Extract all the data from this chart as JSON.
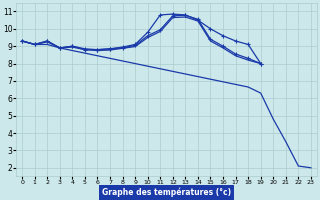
{
  "background_color": "#cce8ea",
  "grid_color": "#aacccc",
  "line_color": "#1a3aaa",
  "xlabel": "Graphe des températures (°c)",
  "xlabel_bg": "#1a3aaa",
  "xlabel_fg": "#ffffff",
  "xlim": [
    -0.5,
    23.5
  ],
  "ylim": [
    1.5,
    11.5
  ],
  "xticks": [
    0,
    1,
    2,
    3,
    4,
    5,
    6,
    7,
    8,
    9,
    10,
    11,
    12,
    13,
    14,
    15,
    16,
    17,
    18,
    19,
    20,
    21,
    22,
    23
  ],
  "yticks": [
    2,
    3,
    4,
    5,
    6,
    7,
    8,
    9,
    10,
    11
  ],
  "s1x": [
    0,
    1,
    2,
    3,
    4,
    5,
    6,
    7,
    8,
    9,
    10,
    11,
    12,
    13,
    14,
    15,
    16,
    17,
    18,
    19,
    20,
    21,
    22,
    23
  ],
  "s1y": [
    9.3,
    9.1,
    9.1,
    8.9,
    8.75,
    8.6,
    8.45,
    8.3,
    8.15,
    8.0,
    7.85,
    7.7,
    7.55,
    7.4,
    7.25,
    7.1,
    6.95,
    6.8,
    6.65,
    6.3,
    4.8,
    3.5,
    2.1,
    2.0
  ],
  "s2x": [
    0,
    1,
    2,
    3,
    4,
    5,
    6,
    7,
    8,
    9,
    10,
    11,
    12,
    13,
    14,
    15,
    16,
    17,
    18,
    19
  ],
  "s2y": [
    9.3,
    9.1,
    9.3,
    8.9,
    9.0,
    8.8,
    8.8,
    8.85,
    8.95,
    9.1,
    9.8,
    10.8,
    10.85,
    10.8,
    10.5,
    10.0,
    9.6,
    9.3,
    9.1,
    8.0
  ],
  "s3x": [
    0,
    1,
    2,
    3,
    4,
    5,
    6,
    7,
    8,
    9,
    10,
    11,
    12,
    13,
    14,
    15,
    16,
    17,
    18,
    19
  ],
  "s3y": [
    9.3,
    9.1,
    9.3,
    8.9,
    9.0,
    8.85,
    8.8,
    8.85,
    8.9,
    9.05,
    9.6,
    9.95,
    10.75,
    10.78,
    10.55,
    9.4,
    9.0,
    8.55,
    8.3,
    8.0
  ],
  "s4x": [
    0,
    1,
    2,
    3,
    4,
    5,
    6,
    7,
    8,
    9,
    10,
    11,
    12,
    13,
    14,
    15,
    16,
    17,
    18,
    19
  ],
  "s4y": [
    9.3,
    9.1,
    9.25,
    8.9,
    8.95,
    8.8,
    8.75,
    8.78,
    8.88,
    8.98,
    9.5,
    9.85,
    10.65,
    10.68,
    10.45,
    9.3,
    8.9,
    8.45,
    8.2,
    8.0
  ]
}
